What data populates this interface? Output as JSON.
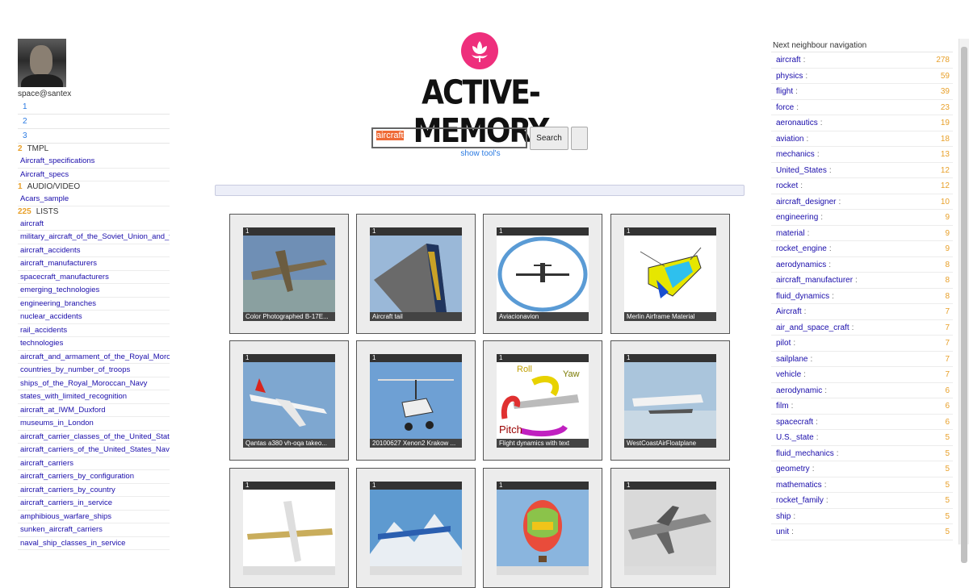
{
  "user": {
    "name": "space@santex"
  },
  "pages": [
    "1",
    "2",
    "3"
  ],
  "sections": {
    "tmpl": {
      "count": "2",
      "label": "TMPL",
      "links": [
        "Aircraft_specifications",
        "Aircraft_specs"
      ]
    },
    "audio": {
      "count": "1",
      "label": "AUDIO/VIDEO",
      "links": [
        "Acars_sample"
      ]
    },
    "lists": {
      "count": "225",
      "label": "LISTS",
      "links": [
        "aircraft",
        "military_aircraft_of_the_Soviet_Union_and_th",
        "aircraft_accidents",
        "aircraft_manufacturers",
        "spacecraft_manufacturers",
        "emerging_technologies",
        "engineering_branches",
        "nuclear_accidents",
        "rail_accidents",
        "technologies",
        "aircraft_and_armament_of_the_Royal_Moroc",
        "countries_by_number_of_troops",
        "ships_of_the_Royal_Moroccan_Navy",
        "states_with_limited_recognition",
        "aircraft_at_IWM_Duxford",
        "museums_in_London",
        "aircraft_carrier_classes_of_the_United_State",
        "aircraft_carriers_of_the_United_States_Navy",
        "aircraft_carriers",
        "aircraft_carriers_by_configuration",
        "aircraft_carriers_by_country",
        "aircraft_carriers_in_service",
        "amphibious_warfare_ships",
        "sunken_aircraft_carriers",
        "naval_ship_classes_in_service"
      ]
    }
  },
  "logo": {
    "title": "ACTIVE-MEMORY",
    "icon": "lotus-icon",
    "color": "#ee2f7c"
  },
  "search": {
    "value": "aircraft",
    "button": "Search",
    "show_tools": "show tool's"
  },
  "results": [
    {
      "badge": "1",
      "caption": "Color Photographed B-17E...",
      "pic": "b17"
    },
    {
      "badge": "1",
      "caption": "Aircraft tail",
      "pic": "tail"
    },
    {
      "badge": "1",
      "caption": "Aviacionavion",
      "pic": "circle-plane"
    },
    {
      "badge": "1",
      "caption": "Merlin Airframe Material",
      "pic": "diagram"
    },
    {
      "badge": "1",
      "caption": "Qantas a380 vh-oqa takeo...",
      "pic": "a380"
    },
    {
      "badge": "1",
      "caption": "20100627 Xenon2 Krakow ...",
      "pic": "gyro"
    },
    {
      "badge": "1",
      "caption": "Flight dynamics with text",
      "pic": "dynamics"
    },
    {
      "badge": "1",
      "caption": "WestCoastAirFloatplane",
      "pic": "floatplane"
    },
    {
      "badge": "1",
      "caption": "",
      "pic": "topview"
    },
    {
      "badge": "1",
      "caption": "",
      "pic": "mountain"
    },
    {
      "badge": "1",
      "caption": "",
      "pic": "balloon"
    },
    {
      "badge": "1",
      "caption": "",
      "pic": "bw"
    }
  ],
  "neighbours": {
    "title": "Next neighbour navigation",
    "items": [
      {
        "name": "aircraft",
        "count": "278"
      },
      {
        "name": "physics",
        "count": "59"
      },
      {
        "name": "flight",
        "count": "39"
      },
      {
        "name": "force",
        "count": "23"
      },
      {
        "name": "aeronautics",
        "count": "19"
      },
      {
        "name": "aviation",
        "count": "18"
      },
      {
        "name": "mechanics",
        "count": "13"
      },
      {
        "name": "United_States",
        "count": "12"
      },
      {
        "name": "rocket",
        "count": "12"
      },
      {
        "name": "aircraft_designer",
        "count": "10"
      },
      {
        "name": "engineering",
        "count": "9"
      },
      {
        "name": "material",
        "count": "9"
      },
      {
        "name": "rocket_engine",
        "count": "9"
      },
      {
        "name": "aerodynamics",
        "count": "8"
      },
      {
        "name": "aircraft_manufacturer",
        "count": "8"
      },
      {
        "name": "fluid_dynamics",
        "count": "8"
      },
      {
        "name": "Aircraft",
        "count": "7"
      },
      {
        "name": "air_and_space_craft",
        "count": "7"
      },
      {
        "name": "pilot",
        "count": "7"
      },
      {
        "name": "sailplane",
        "count": "7"
      },
      {
        "name": "vehicle",
        "count": "7"
      },
      {
        "name": "aerodynamic",
        "count": "6"
      },
      {
        "name": "film",
        "count": "6"
      },
      {
        "name": "spacecraft",
        "count": "6"
      },
      {
        "name": "U.S._state",
        "count": "5"
      },
      {
        "name": "fluid_mechanics",
        "count": "5"
      },
      {
        "name": "geometry",
        "count": "5"
      },
      {
        "name": "mathematics",
        "count": "5"
      },
      {
        "name": "rocket_family",
        "count": "5"
      },
      {
        "name": "ship",
        "count": "5"
      },
      {
        "name": "unit",
        "count": "5"
      }
    ]
  }
}
